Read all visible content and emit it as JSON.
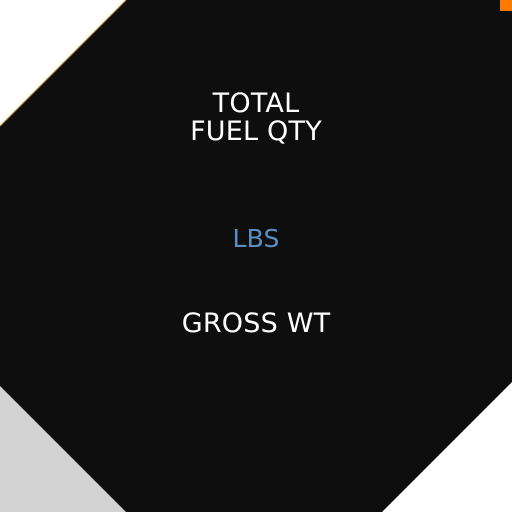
{
  "display": {
    "fuel_title_line1": "TOTAL",
    "fuel_title_line2": "FUEL QTY",
    "units": "LBS",
    "gross_weight_label": "GROSS WT"
  },
  "colors": {
    "panel_background": "#0e0e0e",
    "page_background": "#ffffff",
    "corner_fill": "#d3d3d3",
    "label_text": "#ffffff",
    "units_text": "#5b8ec2",
    "accent_marker": "#ff7a00",
    "edge_highlight": "#c9a24a"
  },
  "icons": {
    "corner_marker": "orange-square-marker-icon"
  }
}
